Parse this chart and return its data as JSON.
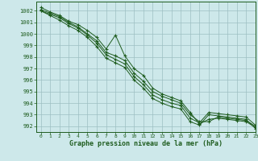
{
  "background_color": "#cde8ea",
  "grid_color": "#9dbfc2",
  "line_color": "#1e5c1e",
  "xlabel": "Graphe pression niveau de la mer (hPa)",
  "xlim": [
    -0.5,
    23
  ],
  "ylim": [
    991.5,
    1002.8
  ],
  "yticks": [
    992,
    993,
    994,
    995,
    996,
    997,
    998,
    999,
    1000,
    1001,
    1002
  ],
  "xticks": [
    0,
    1,
    2,
    3,
    4,
    5,
    6,
    7,
    8,
    9,
    10,
    11,
    12,
    13,
    14,
    15,
    16,
    17,
    18,
    19,
    20,
    21,
    22,
    23
  ],
  "lines": [
    [
      1002.3,
      1001.9,
      1001.6,
      1001.1,
      1000.8,
      1000.3,
      999.7,
      998.7,
      999.9,
      998.1,
      997.0,
      996.4,
      995.3,
      994.8,
      994.5,
      994.2,
      993.2,
      992.2,
      992.6,
      992.7,
      992.6,
      992.5,
      992.4,
      991.9
    ],
    [
      1002.1,
      1001.8,
      1001.5,
      1001.0,
      1000.6,
      1000.0,
      999.4,
      998.4,
      998.1,
      997.7,
      996.6,
      995.9,
      995.0,
      994.6,
      994.3,
      994.0,
      993.0,
      992.4,
      992.4,
      992.8,
      992.7,
      992.6,
      992.5,
      992.0
    ],
    [
      1002.0,
      1001.7,
      1001.4,
      1000.9,
      1000.5,
      999.9,
      999.2,
      998.2,
      997.8,
      997.4,
      996.3,
      995.6,
      994.7,
      994.3,
      994.0,
      993.8,
      992.7,
      992.3,
      993.2,
      993.1,
      993.0,
      992.9,
      992.8,
      992.1
    ],
    [
      1002.0,
      1001.6,
      1001.2,
      1000.7,
      1000.3,
      999.7,
      998.9,
      997.9,
      997.5,
      997.1,
      996.0,
      995.3,
      994.4,
      994.0,
      993.7,
      993.5,
      992.4,
      992.1,
      993.0,
      992.9,
      992.8,
      992.7,
      992.6,
      991.8
    ]
  ]
}
